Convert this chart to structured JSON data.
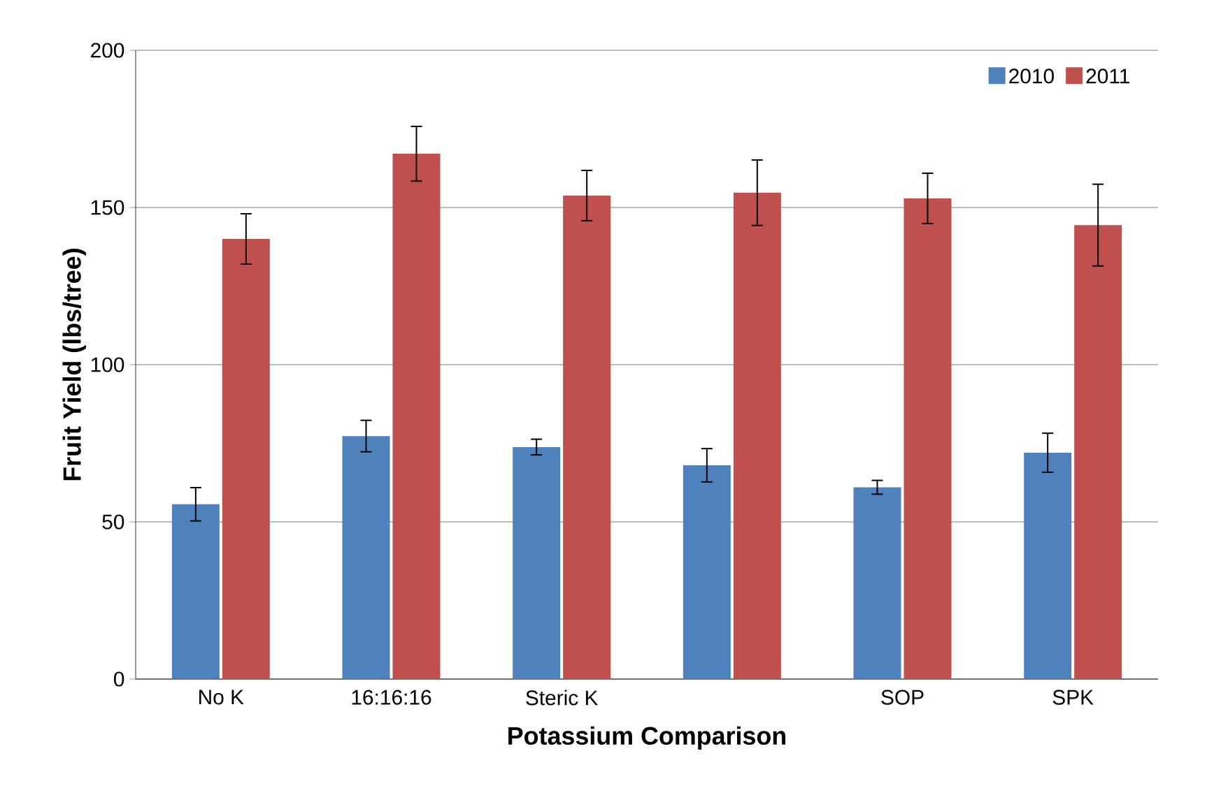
{
  "chart_data": {
    "type": "bar",
    "xlabel": "Potassium Comparison",
    "ylabel": "Fruit Yield (lbs/tree)",
    "categories": [
      "No K",
      "16:16:16",
      "Steric K",
      null,
      "SOP",
      "SPK"
    ],
    "series": [
      {
        "name": "2010",
        "color": "#4f81bd",
        "values": [
          55.6,
          77.3,
          73.8,
          68,
          61,
          72
        ],
        "errors": [
          5.3,
          5,
          2.5,
          5.3,
          2.2,
          6.2
        ]
      },
      {
        "name": "2011",
        "color": "#c0504d",
        "values": [
          140,
          167.1,
          153.8,
          154.7,
          152.9,
          144.4
        ],
        "errors": [
          8,
          8.7,
          8,
          10.4,
          8,
          13
        ]
      }
    ],
    "ylim": [
      0,
      200
    ],
    "yticks": [
      0,
      50,
      100,
      150,
      200
    ],
    "grid": "y",
    "legend": "top right"
  }
}
